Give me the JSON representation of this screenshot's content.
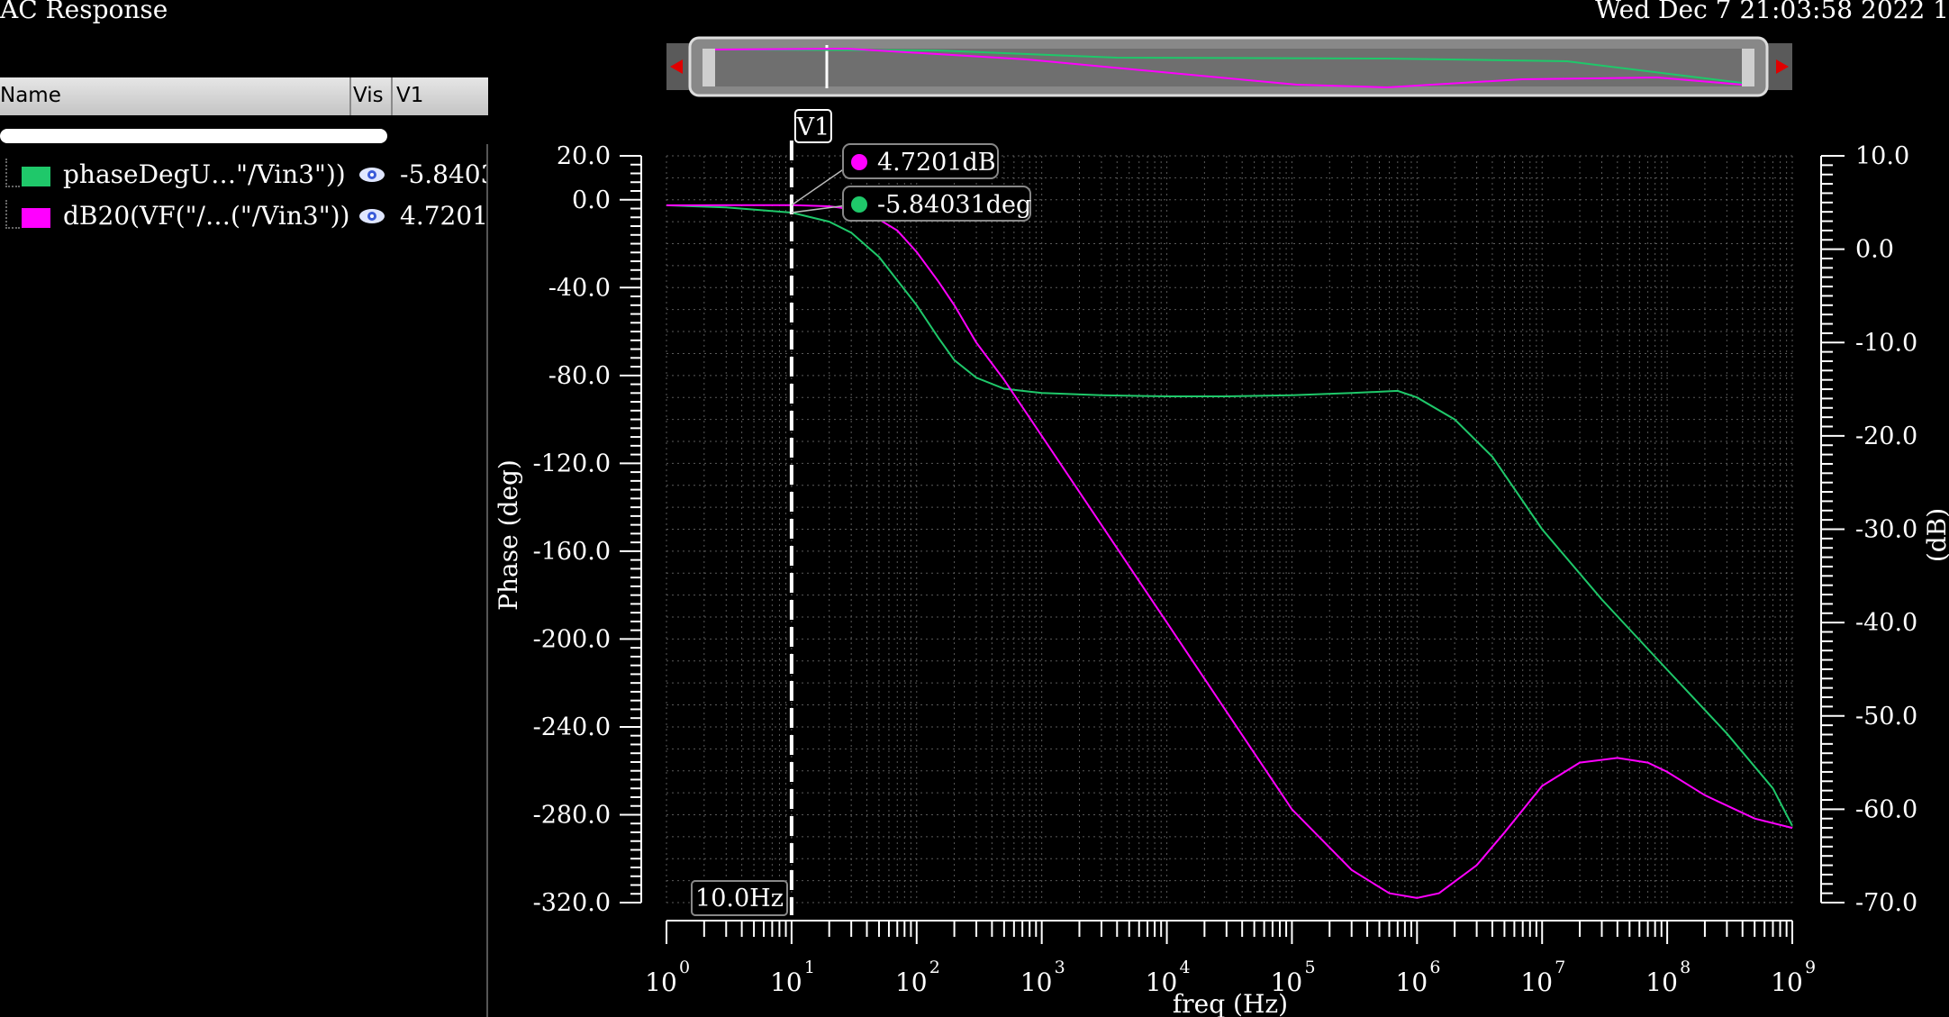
{
  "window": {
    "title": "AC Response",
    "datetime": "Wed Dec 7 21:03:58 2022  1"
  },
  "legend": {
    "col_name": "Name",
    "col_vis": "Vis",
    "col_v1": "V1",
    "rows": [
      {
        "name": "phaseDegU…\"/Vin3\"))",
        "value": "-5.84031",
        "color": "#1fc86a"
      },
      {
        "name": "dB20(VF(\"/…(\"/Vin3\"))",
        "value": "4.7201",
        "color": "#ff00ff"
      }
    ]
  },
  "marker": {
    "label": "V1",
    "x_readout": "10.0Hz",
    "db_readout": "4.7201dB",
    "phase_readout": "-5.84031deg"
  },
  "colors": {
    "phase": "#1fc86a",
    "db": "#ff00ff",
    "background": "#000000",
    "grid": "#5a5a5a"
  },
  "chart_data": {
    "type": "line",
    "xlabel": "freq (Hz)",
    "ylabel_left": "Phase (deg)",
    "ylabel_right": "(dB)",
    "x_scale": "log",
    "xlim": [
      1,
      1000000000
    ],
    "x_tick_labels": [
      "10",
      "10",
      "10",
      "10",
      "10",
      "10",
      "10",
      "10",
      "10",
      "10"
    ],
    "x_tick_exponents": [
      "0",
      "1",
      "2",
      "3",
      "4",
      "5",
      "6",
      "7",
      "8",
      "9"
    ],
    "ylim_left": [
      -320,
      20
    ],
    "ylim_right": [
      -70,
      10
    ],
    "y_left_ticks": [
      "20.0",
      "0.0",
      "-40.0",
      "-80.0",
      "-120.0",
      "-160.0",
      "-200.0",
      "-240.0",
      "-280.0",
      "-320.0"
    ],
    "y_right_ticks": [
      "10.0",
      "0.0",
      "-10.0",
      "-20.0",
      "-30.0",
      "-40.0",
      "-50.0",
      "-60.0",
      "-70.0"
    ],
    "grid": true,
    "marker_x": 10,
    "series": [
      {
        "name": "phaseDegU…\"/Vin3\"))",
        "axis": "left",
        "x": [
          1,
          3,
          10,
          20,
          30,
          50,
          100,
          150,
          200,
          300,
          500,
          1000,
          3000,
          10000,
          30000,
          100000,
          300000,
          700000,
          1000000,
          2000000,
          4000000,
          10000000,
          30000000,
          100000000,
          300000000,
          700000000,
          1000000000
        ],
        "y": [
          -2.5,
          -3.5,
          -5.84,
          -10,
          -15,
          -26,
          -48,
          -63,
          -73,
          -81,
          -86,
          -88,
          -89,
          -89.5,
          -89.5,
          -89,
          -88,
          -87,
          -90,
          -100,
          -117,
          -150,
          -182,
          -214,
          -243,
          -268,
          -285
        ]
      },
      {
        "name": "dB20(VF(\"/…(\"/Vin3\"))",
        "axis": "right",
        "x": [
          1,
          3,
          10,
          20,
          30,
          50,
          70,
          100,
          150,
          200,
          300,
          500,
          1000,
          10000,
          100000,
          300000,
          600000,
          1000000,
          1500000,
          3000000,
          5000000,
          10000000,
          20000000,
          40000000,
          70000000,
          100000000,
          200000000,
          500000000,
          1000000000
        ],
        "y": [
          4.7,
          4.72,
          4.72,
          4.6,
          4.3,
          3.2,
          2,
          -0.3,
          -3.5,
          -6,
          -10,
          -14,
          -20,
          -40,
          -60,
          -66.5,
          -69,
          -69.5,
          -69,
          -66,
          -62.5,
          -57.5,
          -55,
          -54.5,
          -55,
          -56,
          -58.5,
          -61,
          -62
        ]
      }
    ]
  }
}
